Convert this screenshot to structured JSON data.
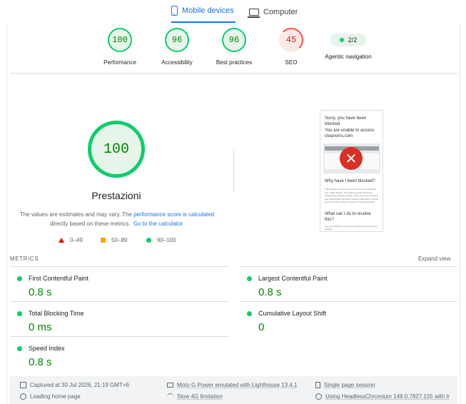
{
  "device_tabs": {
    "mobile_label": "Mobile devices",
    "desktop_label": "Computer"
  },
  "summary": {
    "performance": {
      "score": "100",
      "label": "Performance"
    },
    "accessibility": {
      "score": "96",
      "label": "Accessibility"
    },
    "best_practices": {
      "score": "96",
      "label": "Best practices"
    },
    "seo": {
      "score": "45",
      "label": "SEO"
    },
    "agentic": {
      "score": "2/2",
      "label": "Agentic navigation"
    }
  },
  "performance_detail": {
    "score": "100",
    "title": "Prestazioni",
    "note_prefix": "The values are estimates and may vary. The ",
    "note_link": "performance score is calculated",
    "note_mid": "directly based on these metrics.",
    "note_link2": "Go to the calculator.",
    "legend": {
      "fail": "0–49",
      "average": "50–89",
      "pass": "90–100"
    }
  },
  "screenshot_thumb": {
    "heading": "Sorry, you have been blocked",
    "subheading": "You are unable to access cleanvins.com",
    "why_heading": "Why have I been blocked?",
    "why_body": "This website is using a security service to protect itself from online attacks. The action you just performed triggered the security solution. There are several actions that could trigger this block including submitting a certain word or phrase, a SQL command or malformed data.",
    "what_heading": "What can I do to resolve this?",
    "what_body": "You can email the site owner to let them know you were blocked."
  },
  "metrics": {
    "heading": "METRICS",
    "expand_label": "Expand view",
    "fcp": {
      "name": "First Contentful Paint",
      "value": "0.8 s"
    },
    "lcp": {
      "name": "Largest Contentful Paint",
      "value": "0.8 s"
    },
    "tbt": {
      "name": "Total Blocking Time",
      "value": "0 ms"
    },
    "cls": {
      "name": "Cumulative Layout Shift",
      "value": "0"
    },
    "si": {
      "name": "Speed Index",
      "value": "0.8 s"
    }
  },
  "footer": {
    "captured": "Captured at 30 Jul 2026, 21:19 GMT+6",
    "loading": "Loading home page",
    "device": "Moto G Power emulated with Lighthouse 13.4.1",
    "network": "Slow 4G limitation",
    "session": "Single page session",
    "browser": "Using HeadlessChromium 149.0.7827.155 with lr"
  },
  "colors": {
    "pass": "#0cce6b",
    "fail": "#ff4e42",
    "average": "#ffa400",
    "accent": "#1a73e8"
  }
}
